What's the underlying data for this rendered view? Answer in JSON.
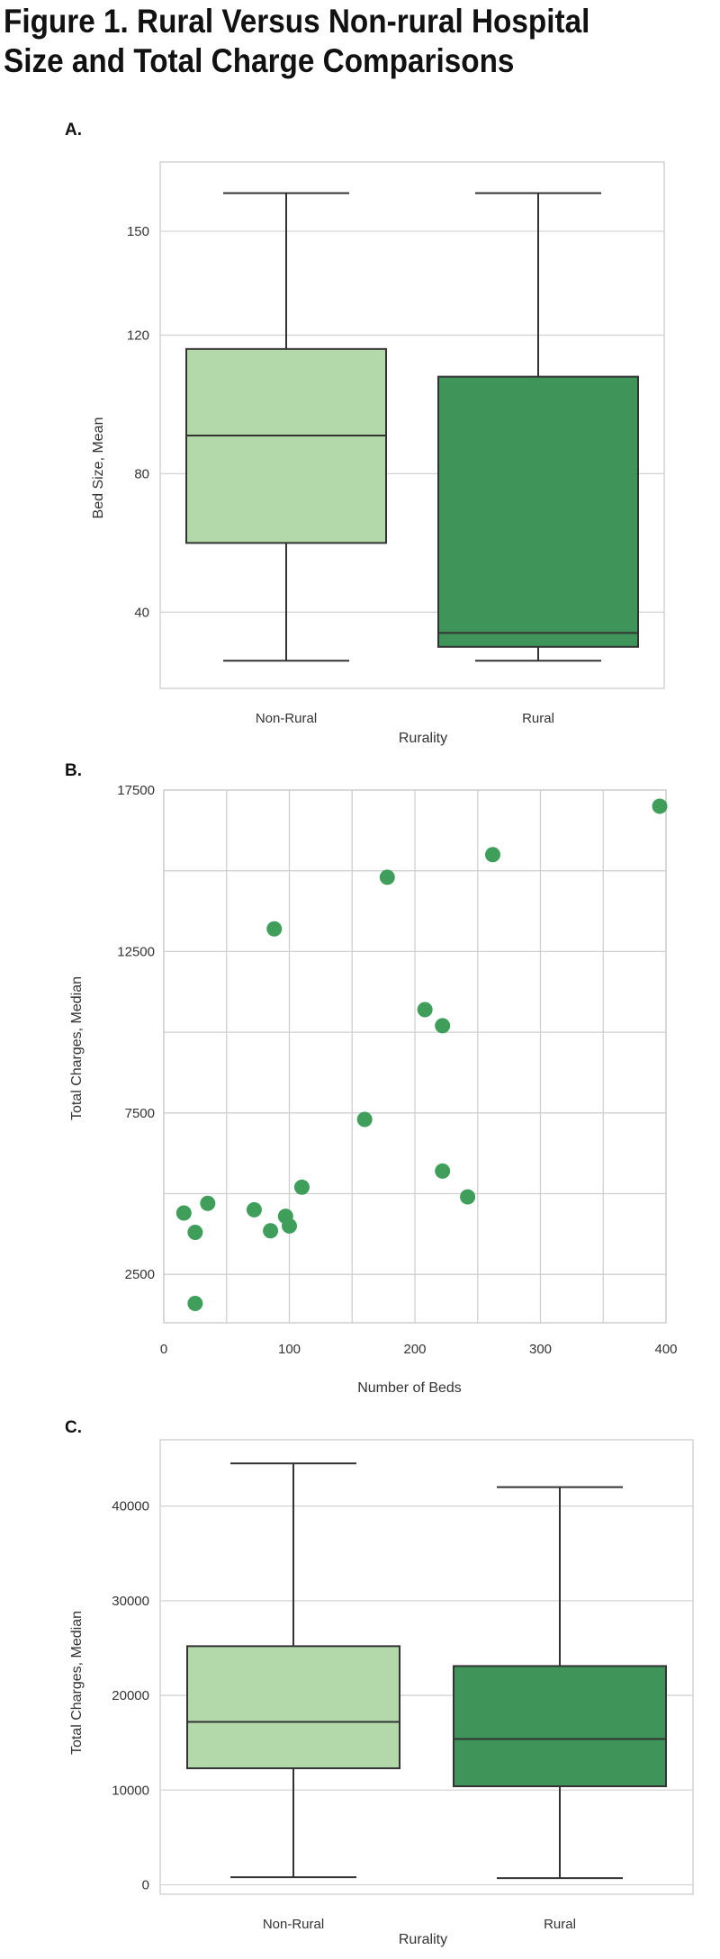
{
  "figure": {
    "title_line1": "Figure 1. Rural Versus Non-rural Hospital",
    "title_line2": "Size and Total Charge Comparisons"
  },
  "chart_data": [
    {
      "panel": "A.",
      "type": "box",
      "xlabel": "Rurality",
      "ylabel": "Bed Size, Mean",
      "ylim": [
        18,
        170
      ],
      "yticks": [
        40,
        80,
        120,
        150
      ],
      "grid": true,
      "legend": "none",
      "categories": [
        "Non-Rural",
        "Rural"
      ],
      "boxes": [
        {
          "category": "Non-Rural",
          "min": 26,
          "q1": 60,
          "median": 91,
          "q3": 116,
          "max": 161,
          "color": "#b3d9ab"
        },
        {
          "category": "Rural",
          "min": 26,
          "q1": 30,
          "median": 34,
          "q3": 108,
          "max": 161,
          "color": "#3f9459"
        }
      ]
    },
    {
      "panel": "B.",
      "type": "scatter",
      "xlabel": "Number of Beds",
      "ylabel": "Total Charges, Median",
      "xlim": [
        0,
        400
      ],
      "ylim": [
        1000,
        17500
      ],
      "xticks": [
        0,
        100,
        200,
        300,
        400
      ],
      "yticks": [
        2500,
        7500,
        12500,
        17500
      ],
      "grid": true,
      "legend": "none",
      "color": "#3f9f5a",
      "points": [
        {
          "x": 16,
          "y": 4400
        },
        {
          "x": 25,
          "y": 3800
        },
        {
          "x": 35,
          "y": 4700
        },
        {
          "x": 25,
          "y": 1600
        },
        {
          "x": 72,
          "y": 4500
        },
        {
          "x": 85,
          "y": 3850
        },
        {
          "x": 97,
          "y": 4300
        },
        {
          "x": 100,
          "y": 4000
        },
        {
          "x": 110,
          "y": 5200
        },
        {
          "x": 88,
          "y": 13200
        },
        {
          "x": 160,
          "y": 7300
        },
        {
          "x": 178,
          "y": 14800
        },
        {
          "x": 208,
          "y": 10700
        },
        {
          "x": 222,
          "y": 10200
        },
        {
          "x": 222,
          "y": 5700
        },
        {
          "x": 242,
          "y": 4900
        },
        {
          "x": 262,
          "y": 15500
        },
        {
          "x": 395,
          "y": 17000
        }
      ]
    },
    {
      "panel": "C.",
      "type": "box",
      "xlabel": "Rurality",
      "ylabel": "Total Charges, Median",
      "ylim": [
        -1000,
        47000
      ],
      "yticks": [
        0,
        10000,
        20000,
        30000,
        40000
      ],
      "grid": true,
      "legend": "none",
      "categories": [
        "Non-Rural",
        "Rural"
      ],
      "boxes": [
        {
          "category": "Non-Rural",
          "min": 800,
          "q1": 12300,
          "median": 17200,
          "q3": 25200,
          "max": 44500,
          "color": "#b3d9ab"
        },
        {
          "category": "Rural",
          "min": 700,
          "q1": 10400,
          "median": 15400,
          "q3": 23100,
          "max": 42000,
          "color": "#3f9459"
        }
      ]
    }
  ]
}
